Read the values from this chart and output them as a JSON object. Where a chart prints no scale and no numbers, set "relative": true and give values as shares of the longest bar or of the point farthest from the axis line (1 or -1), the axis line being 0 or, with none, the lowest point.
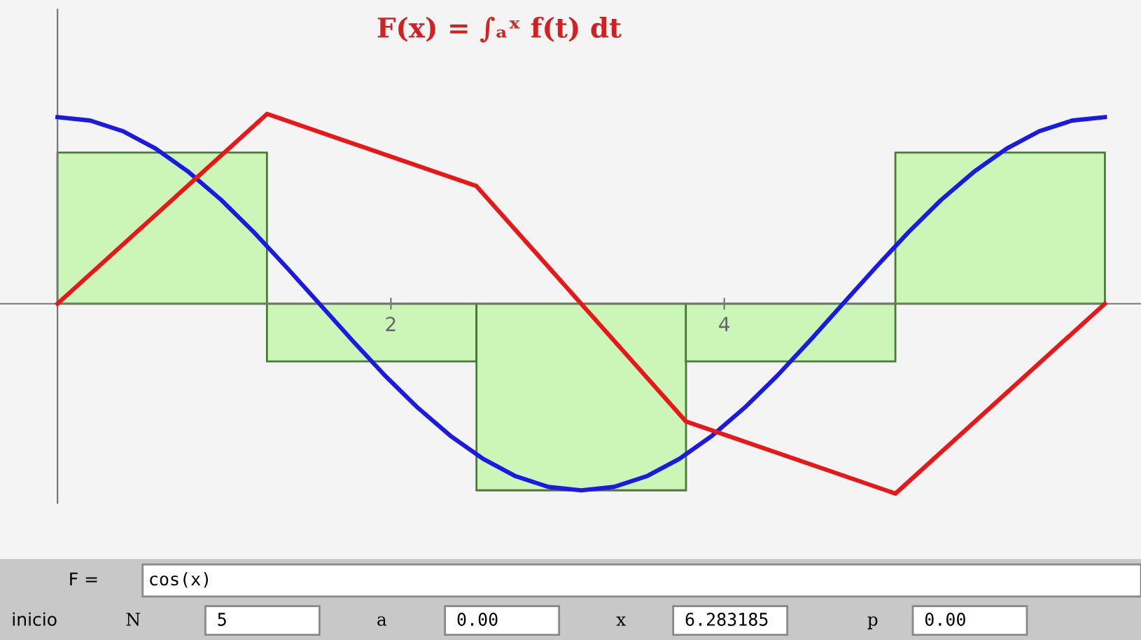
{
  "chart_data": {
    "type": "line",
    "title": "F(x) = ∫ₐˣ f(t) dt",
    "relative": true,
    "xlim": [
      -0.345,
      6.5
    ],
    "xticks": [
      2,
      4
    ],
    "grid": false,
    "legend": false,
    "series": [
      {
        "type": "bar",
        "color": "#ccf5b8",
        "x": [
          0.628,
          1.885,
          3.142,
          4.398,
          5.655
        ],
        "values": [
          0.796,
          -0.304,
          -0.983,
          -0.304,
          0.796
        ]
      },
      {
        "color": "#1a1ae0",
        "x": [
          0,
          0.196,
          0.393,
          0.589,
          0.785,
          0.982,
          1.178,
          1.374,
          1.571,
          1.767,
          1.963,
          2.16,
          2.356,
          2.553,
          2.749,
          2.945,
          3.142,
          3.338,
          3.534,
          3.731,
          3.927,
          4.123,
          4.32,
          4.516,
          4.712,
          4.909,
          5.105,
          5.301,
          5.498,
          5.694,
          5.89,
          6.087,
          6.283
        ],
        "values": [
          0.983,
          0.965,
          0.909,
          0.817,
          0.695,
          0.547,
          0.377,
          0.192,
          0,
          -0.192,
          -0.377,
          -0.547,
          -0.695,
          -0.817,
          -0.909,
          -0.965,
          -0.983,
          -0.965,
          -0.909,
          -0.817,
          -0.695,
          -0.547,
          -0.377,
          -0.192,
          0,
          0.192,
          0.377,
          0.547,
          0.695,
          0.817,
          0.909,
          0.965,
          0.983
        ]
      },
      {
        "color": "#e81818",
        "x": [
          0,
          1.257,
          2.513,
          3.77,
          5.027,
          6.283
        ],
        "values": [
          0,
          1,
          0.62,
          -0.62,
          -1,
          0
        ]
      }
    ],
    "annotations": [
      "F =",
      "cos(x)",
      "inicio",
      "N",
      "5",
      "a",
      "0.00",
      "x",
      "6.283185",
      "p",
      "0.00"
    ]
  }
}
